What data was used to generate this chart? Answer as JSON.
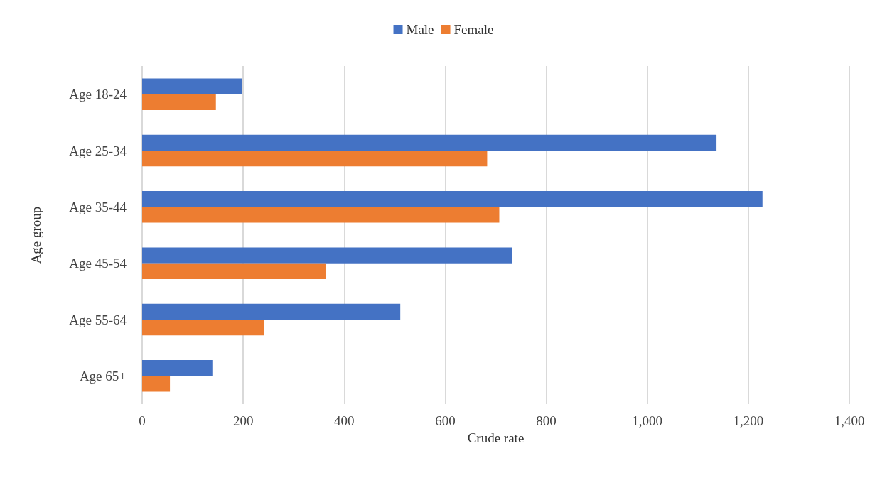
{
  "chart_data": {
    "type": "bar",
    "orientation": "horizontal",
    "ylabel": "Age group",
    "xlabel": "Crude rate",
    "categories": [
      "Age 18-24",
      "Age 25-34",
      "Age 35-44",
      "Age 45-54",
      "Age 55-64",
      "Age 65+"
    ],
    "series": [
      {
        "name": "Male",
        "color": "#4472c4",
        "values": [
          198,
          1137,
          1228,
          733,
          511,
          139
        ]
      },
      {
        "name": "Female",
        "color": "#ed7d31",
        "values": [
          146,
          683,
          707,
          363,
          241,
          55
        ]
      }
    ],
    "xlim": [
      0,
      1400
    ],
    "xticks": [
      0,
      {
        "value": 200,
        "label": "200"
      },
      {
        "value": 400,
        "label": "400"
      },
      {
        "value": 600,
        "label": "600"
      },
      {
        "value": 800,
        "label": "800"
      },
      {
        "value": 1000,
        "label": "1,000"
      },
      {
        "value": 1200,
        "label": "1,200"
      },
      {
        "value": 1400,
        "label": "1,400"
      }
    ],
    "grid": "x",
    "legend": "top"
  }
}
